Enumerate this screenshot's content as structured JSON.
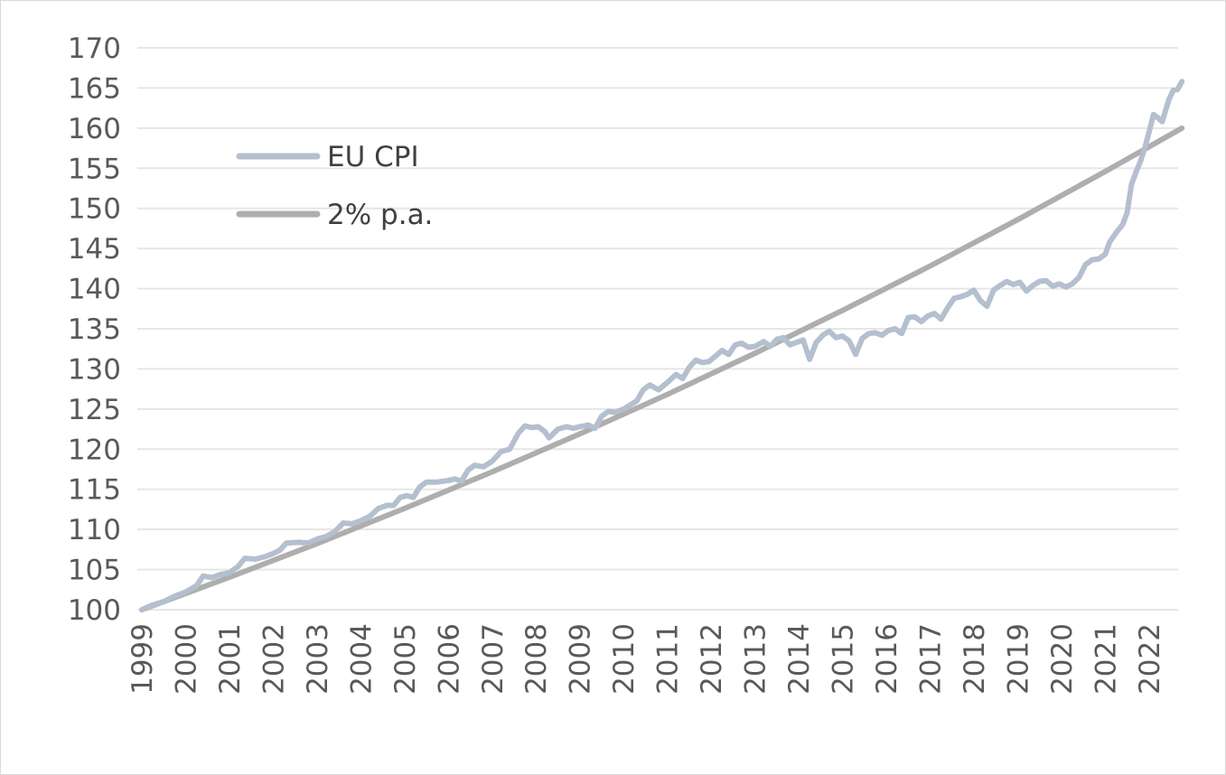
{
  "chart_data": {
    "type": "line",
    "title": "",
    "xlabel": "",
    "ylabel": "",
    "ylim": [
      100,
      170
    ],
    "y_ticks": [
      "100",
      "105",
      "110",
      "115",
      "120",
      "125",
      "130",
      "135",
      "140",
      "145",
      "150",
      "155",
      "160",
      "165",
      "170"
    ],
    "x_ticks": [
      "1999",
      "2000",
      "2001",
      "2002",
      "2003",
      "2004",
      "2005",
      "2006",
      "2007",
      "2008",
      "2009",
      "2010",
      "2011",
      "2012",
      "2013",
      "2014",
      "2015",
      "2016",
      "2017",
      "2018",
      "2019",
      "2020",
      "2021",
      "2022"
    ],
    "xlim": [
      1999.0,
      2022.75
    ],
    "grid": true,
    "legend_position": "upper-left",
    "series": [
      {
        "name": "EU CPI",
        "color": "#b4bfcf",
        "points": [
          [
            1999.0,
            100.0
          ],
          [
            1999.25,
            100.6
          ],
          [
            1999.5,
            101.0
          ],
          [
            1999.75,
            101.7
          ],
          [
            2000.0,
            102.2
          ],
          [
            2000.25,
            103.0
          ],
          [
            2000.4,
            104.2
          ],
          [
            2000.6,
            104.0
          ],
          [
            2000.8,
            104.4
          ],
          [
            2001.0,
            104.6
          ],
          [
            2001.2,
            105.4
          ],
          [
            2001.35,
            106.4
          ],
          [
            2001.6,
            106.3
          ],
          [
            2001.8,
            106.6
          ],
          [
            2002.0,
            107.0
          ],
          [
            2002.15,
            107.4
          ],
          [
            2002.3,
            108.3
          ],
          [
            2002.6,
            108.4
          ],
          [
            2002.8,
            108.3
          ],
          [
            2003.0,
            108.8
          ],
          [
            2003.2,
            109.1
          ],
          [
            2003.4,
            109.7
          ],
          [
            2003.6,
            110.8
          ],
          [
            2003.8,
            110.7
          ],
          [
            2004.0,
            111.1
          ],
          [
            2004.2,
            111.6
          ],
          [
            2004.4,
            112.6
          ],
          [
            2004.6,
            113.0
          ],
          [
            2004.75,
            113.0
          ],
          [
            2004.9,
            114.0
          ],
          [
            2005.05,
            114.2
          ],
          [
            2005.2,
            114.0
          ],
          [
            2005.35,
            115.3
          ],
          [
            2005.5,
            115.9
          ],
          [
            2005.75,
            115.9
          ],
          [
            2006.0,
            116.1
          ],
          [
            2006.15,
            116.3
          ],
          [
            2006.3,
            116.0
          ],
          [
            2006.45,
            117.4
          ],
          [
            2006.6,
            118.0
          ],
          [
            2006.8,
            117.8
          ],
          [
            2007.0,
            118.5
          ],
          [
            2007.2,
            119.7
          ],
          [
            2007.4,
            120.0
          ],
          [
            2007.6,
            122.0
          ],
          [
            2007.75,
            122.9
          ],
          [
            2007.9,
            122.7
          ],
          [
            2008.05,
            122.8
          ],
          [
            2008.2,
            122.2
          ],
          [
            2008.3,
            121.4
          ],
          [
            2008.5,
            122.5
          ],
          [
            2008.7,
            122.8
          ],
          [
            2008.85,
            122.6
          ],
          [
            2009.0,
            122.8
          ],
          [
            2009.2,
            123.0
          ],
          [
            2009.35,
            122.6
          ],
          [
            2009.5,
            124.1
          ],
          [
            2009.65,
            124.7
          ],
          [
            2009.8,
            124.6
          ],
          [
            2010.0,
            125.0
          ],
          [
            2010.15,
            125.5
          ],
          [
            2010.3,
            126.0
          ],
          [
            2010.45,
            127.4
          ],
          [
            2010.6,
            128.0
          ],
          [
            2010.8,
            127.4
          ],
          [
            2011.0,
            128.3
          ],
          [
            2011.2,
            129.3
          ],
          [
            2011.35,
            128.8
          ],
          [
            2011.5,
            130.2
          ],
          [
            2011.65,
            131.1
          ],
          [
            2011.8,
            130.8
          ],
          [
            2011.95,
            130.9
          ],
          [
            2012.1,
            131.6
          ],
          [
            2012.25,
            132.3
          ],
          [
            2012.4,
            131.8
          ],
          [
            2012.55,
            133.0
          ],
          [
            2012.7,
            133.2
          ],
          [
            2012.85,
            132.7
          ],
          [
            2013.0,
            132.8
          ],
          [
            2013.2,
            133.4
          ],
          [
            2013.35,
            132.8
          ],
          [
            2013.5,
            133.7
          ],
          [
            2013.65,
            133.9
          ],
          [
            2013.8,
            133.0
          ],
          [
            2013.95,
            133.3
          ],
          [
            2014.1,
            133.6
          ],
          [
            2014.25,
            131.2
          ],
          [
            2014.4,
            133.3
          ],
          [
            2014.55,
            134.2
          ],
          [
            2014.7,
            134.7
          ],
          [
            2014.85,
            133.9
          ],
          [
            2015.0,
            134.1
          ],
          [
            2015.15,
            133.5
          ],
          [
            2015.3,
            131.8
          ],
          [
            2015.45,
            133.8
          ],
          [
            2015.6,
            134.4
          ],
          [
            2015.75,
            134.5
          ],
          [
            2015.9,
            134.2
          ],
          [
            2016.05,
            134.8
          ],
          [
            2016.2,
            135.0
          ],
          [
            2016.35,
            134.4
          ],
          [
            2016.5,
            136.4
          ],
          [
            2016.65,
            136.5
          ],
          [
            2016.8,
            135.9
          ],
          [
            2016.95,
            136.6
          ],
          [
            2017.1,
            136.9
          ],
          [
            2017.25,
            136.2
          ],
          [
            2017.4,
            137.6
          ],
          [
            2017.55,
            138.8
          ],
          [
            2017.7,
            139.0
          ],
          [
            2017.85,
            139.3
          ],
          [
            2018.0,
            139.8
          ],
          [
            2018.15,
            138.5
          ],
          [
            2018.3,
            137.8
          ],
          [
            2018.45,
            139.8
          ],
          [
            2018.6,
            140.4
          ],
          [
            2018.75,
            140.9
          ],
          [
            2018.9,
            140.5
          ],
          [
            2019.05,
            140.8
          ],
          [
            2019.2,
            139.7
          ],
          [
            2019.35,
            140.4
          ],
          [
            2019.5,
            140.9
          ],
          [
            2019.65,
            141.0
          ],
          [
            2019.8,
            140.3
          ],
          [
            2019.95,
            140.6
          ],
          [
            2020.1,
            140.2
          ],
          [
            2020.25,
            140.6
          ],
          [
            2020.4,
            141.4
          ],
          [
            2020.55,
            143.0
          ],
          [
            2020.7,
            143.6
          ],
          [
            2020.85,
            143.7
          ],
          [
            2021.0,
            144.3
          ],
          [
            2021.1,
            145.8
          ],
          [
            2021.25,
            147.0
          ],
          [
            2021.4,
            148.0
          ],
          [
            2021.5,
            149.5
          ],
          [
            2021.6,
            153.0
          ],
          [
            2021.7,
            154.5
          ],
          [
            2021.8,
            155.8
          ],
          [
            2021.9,
            157.5
          ],
          [
            2022.0,
            159.5
          ],
          [
            2022.1,
            161.7
          ],
          [
            2022.2,
            161.3
          ],
          [
            2022.3,
            160.8
          ],
          [
            2022.45,
            163.5
          ],
          [
            2022.55,
            164.7
          ],
          [
            2022.65,
            164.8
          ],
          [
            2022.75,
            165.8
          ]
        ]
      },
      {
        "name": "2% p.a.",
        "color": "#aeaeae",
        "points": [
          [
            1999.0,
            100.0
          ],
          [
            2001.0,
            104.04
          ],
          [
            2003.0,
            108.24
          ],
          [
            2005.0,
            112.62
          ],
          [
            2007.0,
            117.17
          ],
          [
            2009.0,
            121.9
          ],
          [
            2011.0,
            126.82
          ],
          [
            2013.0,
            131.95
          ],
          [
            2015.0,
            137.28
          ],
          [
            2017.0,
            142.82
          ],
          [
            2019.0,
            148.59
          ],
          [
            2021.0,
            154.59
          ],
          [
            2022.75,
            160.0
          ]
        ]
      }
    ]
  }
}
